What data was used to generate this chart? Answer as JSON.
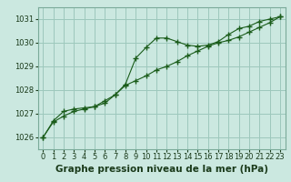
{
  "title": "Graphe pression niveau de la mer (hPa)",
  "background_color": "#cbe8e0",
  "plot_bg_color": "#cbe8e0",
  "grid_color": "#9dc8bc",
  "line_color": "#1a5c1a",
  "marker_color": "#1a5c1a",
  "xlim": [
    -0.5,
    23.5
  ],
  "ylim": [
    1025.5,
    1031.5
  ],
  "yticks": [
    1026,
    1027,
    1028,
    1029,
    1030,
    1031
  ],
  "xticks": [
    0,
    1,
    2,
    3,
    4,
    5,
    6,
    7,
    8,
    9,
    10,
    11,
    12,
    13,
    14,
    15,
    16,
    17,
    18,
    19,
    20,
    21,
    22,
    23
  ],
  "series1": [
    [
      0,
      1026.0
    ],
    [
      1,
      1026.65
    ],
    [
      2,
      1026.9
    ],
    [
      3,
      1027.1
    ],
    [
      4,
      1027.2
    ],
    [
      5,
      1027.3
    ],
    [
      6,
      1027.55
    ],
    [
      7,
      1027.8
    ],
    [
      8,
      1028.25
    ],
    [
      9,
      1029.35
    ],
    [
      10,
      1029.8
    ],
    [
      11,
      1030.2
    ],
    [
      12,
      1030.2
    ],
    [
      13,
      1030.05
    ],
    [
      14,
      1029.9
    ],
    [
      15,
      1029.85
    ],
    [
      16,
      1029.9
    ],
    [
      17,
      1030.05
    ],
    [
      18,
      1030.35
    ],
    [
      19,
      1030.6
    ],
    [
      20,
      1030.7
    ],
    [
      21,
      1030.9
    ],
    [
      22,
      1031.0
    ],
    [
      23,
      1031.1
    ]
  ],
  "series2": [
    [
      0,
      1026.0
    ],
    [
      1,
      1026.7
    ],
    [
      2,
      1027.1
    ],
    [
      3,
      1027.2
    ],
    [
      4,
      1027.25
    ],
    [
      5,
      1027.3
    ],
    [
      6,
      1027.45
    ],
    [
      7,
      1027.8
    ],
    [
      8,
      1028.2
    ],
    [
      9,
      1028.4
    ],
    [
      10,
      1028.6
    ],
    [
      11,
      1028.85
    ],
    [
      12,
      1029.0
    ],
    [
      13,
      1029.2
    ],
    [
      14,
      1029.45
    ],
    [
      15,
      1029.65
    ],
    [
      16,
      1029.85
    ],
    [
      17,
      1030.0
    ],
    [
      18,
      1030.1
    ],
    [
      19,
      1030.25
    ],
    [
      20,
      1030.45
    ],
    [
      21,
      1030.65
    ],
    [
      22,
      1030.85
    ],
    [
      23,
      1031.1
    ]
  ],
  "title_fontsize": 7.5,
  "tick_fontsize": 6.0
}
